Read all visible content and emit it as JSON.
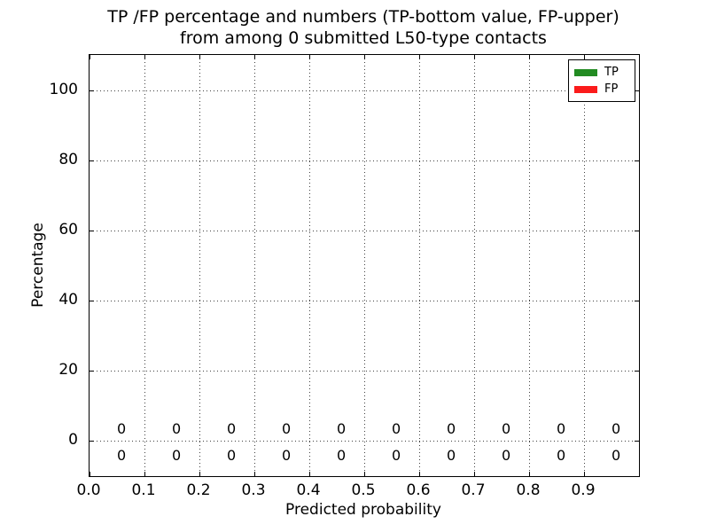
{
  "chart_data": {
    "type": "bar",
    "title_line1": "TP /FP percentage and numbers (TP-bottom value, FP-upper)",
    "title_line2": "from among 0 submitted L50-type contacts",
    "xlabel": "Predicted probability",
    "ylabel": "Percentage",
    "xlim": [
      0.0,
      1.0
    ],
    "ylim": [
      -10,
      110
    ],
    "xtick_labels": [
      "0.0",
      "0.1",
      "0.2",
      "0.3",
      "0.4",
      "0.5",
      "0.6",
      "0.7",
      "0.8",
      "0.9"
    ],
    "ytick_values": [
      0,
      20,
      40,
      60,
      80,
      100
    ],
    "grid_style": "dotted",
    "bin_centers": [
      0.05,
      0.15,
      0.25,
      0.35,
      0.45,
      0.55,
      0.65,
      0.75,
      0.85,
      0.95
    ],
    "series": [
      {
        "name": "TP",
        "color": "#228b22",
        "values": [
          0,
          0,
          0,
          0,
          0,
          0,
          0,
          0,
          0,
          0
        ]
      },
      {
        "name": "FP",
        "color": "#fb1b1b",
        "values": [
          0,
          0,
          0,
          0,
          0,
          0,
          0,
          0,
          0,
          0
        ]
      }
    ],
    "upper_annotation_labels": [
      "0",
      "0",
      "0",
      "0",
      "0",
      "0",
      "0",
      "0",
      "0",
      "0"
    ],
    "lower_annotation_labels": [
      "0",
      "0",
      "0",
      "0",
      "0",
      "0",
      "0",
      "0",
      "0",
      "0"
    ],
    "legend": {
      "position": "upper right",
      "entries": [
        {
          "label": "TP",
          "color": "#228b22"
        },
        {
          "label": "FP",
          "color": "#fb1b1b"
        }
      ]
    }
  }
}
